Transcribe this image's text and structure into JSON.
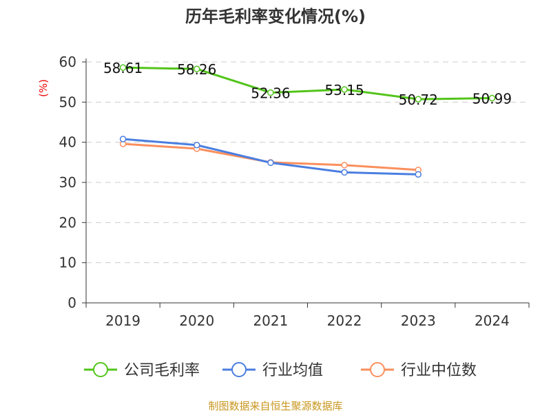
{
  "chart_data": {
    "type": "line",
    "title": "历年毛利率变化情况(%)",
    "ylabel": "(%)",
    "categories": [
      "2019",
      "2020",
      "2021",
      "2022",
      "2023",
      "2024"
    ],
    "ylim": [
      0,
      60
    ],
    "yticks": [
      0,
      10,
      20,
      30,
      40,
      50,
      60
    ],
    "grid": true,
    "legend_position": "bottom",
    "series": [
      {
        "name": "公司毛利率",
        "color": "#52c41a",
        "values": [
          58.61,
          58.26,
          52.36,
          53.15,
          50.72,
          50.99
        ],
        "labels": [
          "58.61",
          "58.26",
          "52.36",
          "53.15",
          "50.72",
          "50.99"
        ]
      },
      {
        "name": "行业均值",
        "color": "#4a7ee0",
        "values": [
          40.8,
          39.3,
          34.9,
          32.5,
          32.0,
          null
        ]
      },
      {
        "name": "行业中位数",
        "color": "#fb8f5c",
        "values": [
          39.6,
          38.4,
          35.0,
          34.3,
          33.1,
          null
        ]
      }
    ],
    "source": "制图数据来自恒生聚源数据库"
  }
}
